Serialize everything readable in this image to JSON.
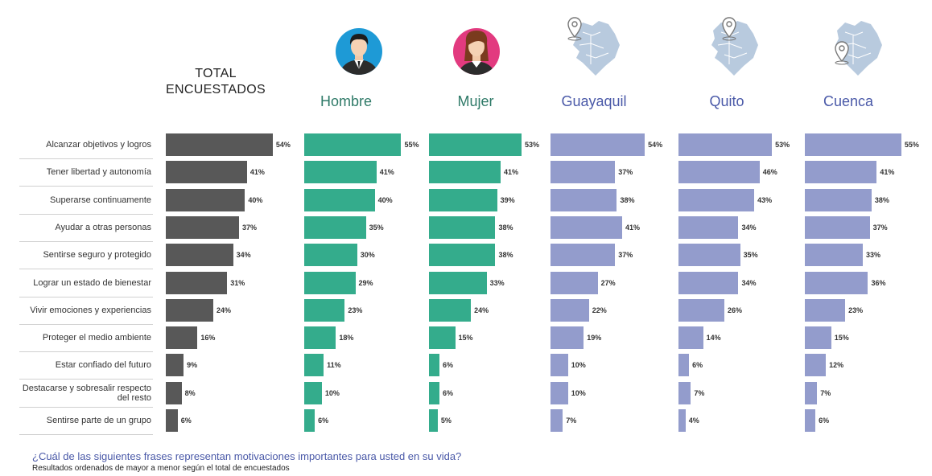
{
  "header": {
    "total_label": "TOTAL ENCUESTADOS"
  },
  "question": "¿Cuál de las siguientes frases representan motivaciones importantes para usted en su vida?",
  "note": "Resultados ordenados de mayor a menor según el total de encuestados",
  "icons": [
    "man-avatar-icon",
    "woman-avatar-icon",
    "ecuador-map-pin-icon",
    "ecuador-map-pin-icon",
    "ecuador-map-pin-icon"
  ],
  "colors": {
    "total": "#585858",
    "gender": "#34ac8c",
    "city": "#939ccc",
    "gender_label": "#2f7a68",
    "city_label": "#4a59a8"
  },
  "chart_data": {
    "type": "bar",
    "orientation": "horizontal",
    "categories": [
      "Alcanzar objetivos y logros",
      "Tener libertad y autonomía",
      "Superarse continuamente",
      "Ayudar a otras personas",
      "Sentirse seguro y protegido",
      "Lograr un estado de bienestar",
      "Vivir emociones y experiencias",
      "Proteger el medio ambiente",
      "Estar confiado del futuro",
      "Destacarse y sobresalir respecto del resto",
      "Sentirse parte de un grupo"
    ],
    "series": [
      {
        "name": "TOTAL ENCUESTADOS",
        "values": [
          54,
          41,
          40,
          37,
          34,
          31,
          24,
          16,
          9,
          8,
          6
        ]
      },
      {
        "name": "Hombre",
        "values": [
          55,
          41,
          40,
          35,
          30,
          29,
          23,
          18,
          11,
          10,
          6
        ]
      },
      {
        "name": "Mujer",
        "values": [
          53,
          41,
          39,
          38,
          38,
          33,
          24,
          15,
          6,
          6,
          5
        ]
      },
      {
        "name": "Guayaquil",
        "values": [
          54,
          37,
          38,
          41,
          37,
          27,
          22,
          19,
          10,
          10,
          7
        ]
      },
      {
        "name": "Quito",
        "values": [
          53,
          46,
          43,
          34,
          35,
          34,
          26,
          14,
          6,
          7,
          4
        ]
      },
      {
        "name": "Cuenca",
        "values": [
          55,
          41,
          38,
          37,
          33,
          36,
          23,
          15,
          12,
          7,
          6
        ]
      }
    ],
    "value_suffix": "%",
    "grid": false,
    "legend": "none"
  }
}
